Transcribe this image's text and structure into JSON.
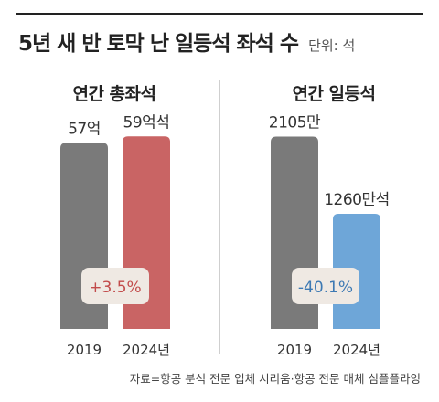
{
  "header": {
    "title": "5년 새 반 토막 난 일등석 좌석 수",
    "unit": "단위: 석"
  },
  "colors": {
    "bar_2019": "#7a7a7a",
    "bar_2024_left": "#c96464",
    "bar_2024_right": "#6ea6d8",
    "badge_bg": "#efe9e3",
    "badge_text_up": "#c24b4b",
    "badge_text_down": "#3d79b3"
  },
  "chart_data": [
    {
      "type": "bar",
      "title": "연간 총좌석",
      "categories": [
        "2019",
        "2024년"
      ],
      "values": [
        57,
        59
      ],
      "value_labels": [
        "57억",
        "59억석"
      ],
      "change_label": "+3.5%",
      "ylim": [
        0,
        70
      ]
    },
    {
      "type": "bar",
      "title": "연간 일등석",
      "categories": [
        "2019",
        "2024년"
      ],
      "values": [
        2105,
        1260
      ],
      "value_labels": [
        "2105만",
        "1260만석"
      ],
      "change_label": "-40.1%",
      "ylim": [
        0,
        2500
      ]
    }
  ],
  "footer": {
    "source": "자료=항공 분석 전문 업체 시리움·항공 전문 매체 심플플라잉"
  }
}
